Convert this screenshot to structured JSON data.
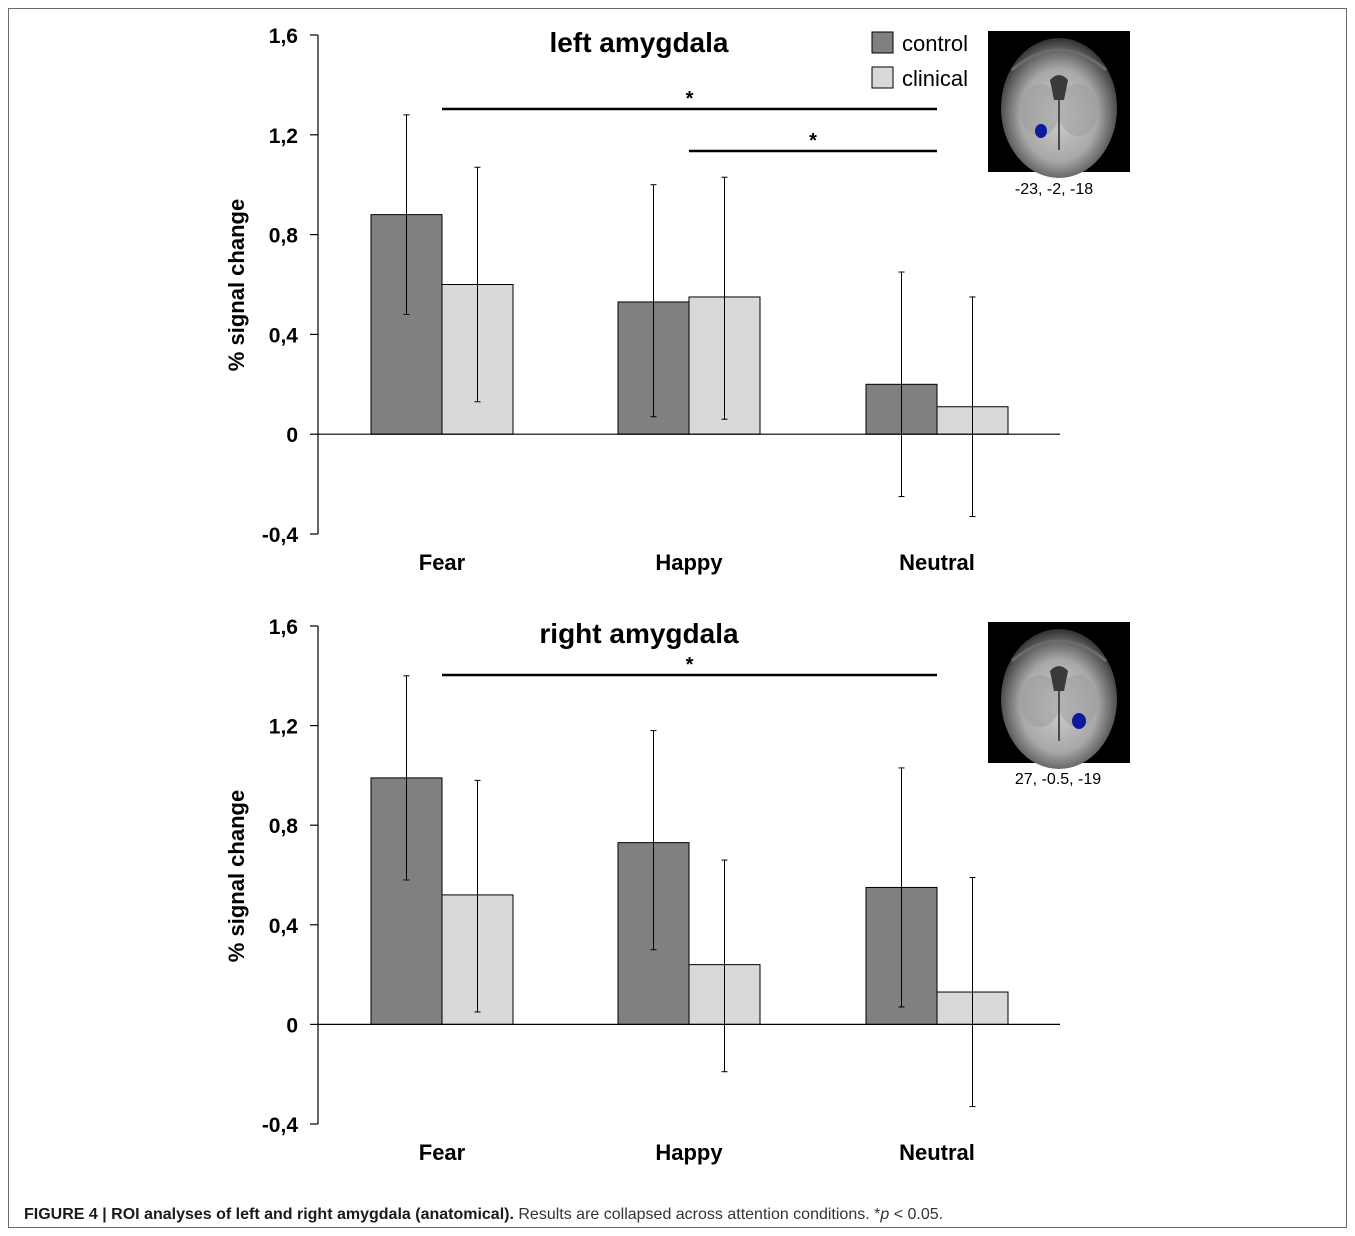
{
  "colors": {
    "control": "#808080",
    "clinical": "#d9d9d9",
    "roi_blob": "#0c1a9c"
  },
  "legend": {
    "control_label": "control",
    "clinical_label": "clinical"
  },
  "caption": {
    "figure_label": "FIGURE 4 | ROI analyses of left and right amygdala (anatomical).",
    "text_before_p": " Results are collapsed across attention conditions. *",
    "p_symbol": "p",
    "text_after_p": " < 0.05."
  },
  "chart_data": [
    {
      "type": "bar",
      "title": "left amygdala",
      "ylabel": "% signal change",
      "xlabel": "",
      "categories": [
        "Fear",
        "Happy",
        "Neutral"
      ],
      "ylim": [
        -0.4,
        1.6
      ],
      "yticks": [
        -0.4,
        0,
        0.4,
        0.8,
        1.2,
        1.6
      ],
      "ytick_labels": [
        "-0,4",
        "0",
        "0,4",
        "0,8",
        "1,2",
        "1,6"
      ],
      "grid": false,
      "legend_position": "top-right",
      "series": [
        {
          "name": "control",
          "values": [
            0.88,
            0.53,
            0.2
          ],
          "err_low": [
            0.48,
            0.07,
            -0.25
          ],
          "err_high": [
            1.28,
            1.0,
            0.65
          ]
        },
        {
          "name": "clinical",
          "values": [
            0.6,
            0.55,
            0.11
          ],
          "err_low": [
            0.13,
            0.06,
            -0.33
          ],
          "err_high": [
            1.07,
            1.03,
            0.55
          ]
        }
      ],
      "significance": [
        {
          "from": "Fear",
          "to": "Neutral",
          "label": "*"
        },
        {
          "from": "Happy",
          "to": "Neutral",
          "label": "*"
        }
      ],
      "inset_coordinates": "-23, -2, -18"
    },
    {
      "type": "bar",
      "title": "right amygdala",
      "ylabel": "% signal change",
      "xlabel": "",
      "categories": [
        "Fear",
        "Happy",
        "Neutral"
      ],
      "ylim": [
        -0.4,
        1.6
      ],
      "yticks": [
        -0.4,
        0,
        0.4,
        0.8,
        1.2,
        1.6
      ],
      "ytick_labels": [
        "-0,4",
        "0",
        "0,4",
        "0,8",
        "1,2",
        "1,6"
      ],
      "grid": false,
      "series": [
        {
          "name": "control",
          "values": [
            0.99,
            0.73,
            0.55
          ],
          "err_low": [
            0.58,
            0.3,
            0.07
          ],
          "err_high": [
            1.4,
            1.18,
            1.03
          ]
        },
        {
          "name": "clinical",
          "values": [
            0.52,
            0.24,
            0.13
          ],
          "err_low": [
            0.05,
            -0.19,
            -0.33
          ],
          "err_high": [
            0.98,
            0.66,
            0.59
          ]
        }
      ],
      "significance": [
        {
          "from": "Fear",
          "to": "Neutral",
          "label": "*"
        }
      ],
      "inset_coordinates": "27, -0.5, -19"
    }
  ]
}
